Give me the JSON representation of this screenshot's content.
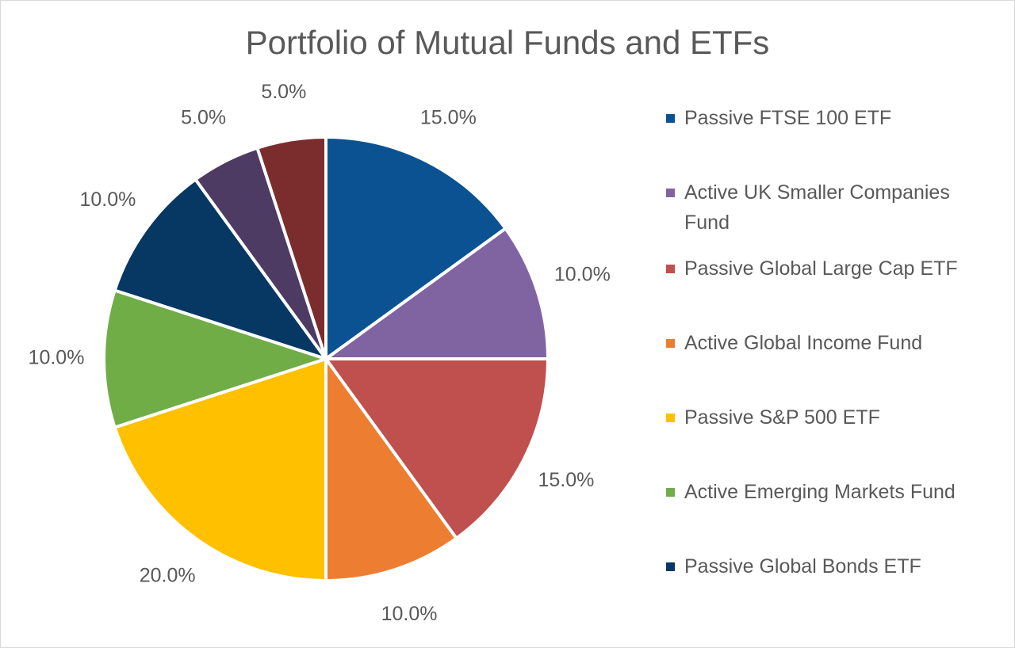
{
  "chart_data": {
    "type": "pie",
    "title": "Portfolio of Mutual Funds and ETFs",
    "slices": [
      {
        "name": "Passive FTSE 100 ETF",
        "value": 15.0,
        "label": "15.0%",
        "color": "#0A5292"
      },
      {
        "name": "Active UK Smaller Companies Fund",
        "value": 10.0,
        "label": "10.0%",
        "color": "#8064A2"
      },
      {
        "name": "Passive Global Large Cap ETF",
        "value": 15.0,
        "label": "15.0%",
        "color": "#C0504D"
      },
      {
        "name": "Active Global Income Fund",
        "value": 10.0,
        "label": "10.0%",
        "color": "#ED7D31"
      },
      {
        "name": "Passive S&P 500 ETF",
        "value": 20.0,
        "label": "20.0%",
        "color": "#FFC000"
      },
      {
        "name": "Active Emerging Markets Fund",
        "value": 10.0,
        "label": "10.0%",
        "color": "#70AD47"
      },
      {
        "name": "Passive Global Bonds ETF",
        "value": 10.0,
        "label": "10.0%",
        "color": "#073763"
      },
      {
        "name": "",
        "value": 5.0,
        "label": "5.0%",
        "color": "#4E3B63"
      },
      {
        "name": "",
        "value": 5.0,
        "label": "5.0%",
        "color": "#7B2C2C"
      }
    ],
    "legend": [
      "Passive FTSE 100 ETF",
      "Active UK Smaller Companies Fund",
      "Passive Global Large Cap ETF",
      "Active Global Income Fund",
      "Passive S&P 500 ETF",
      "Active Emerging Markets Fund",
      "Passive Global Bonds ETF"
    ],
    "legend_position": "right"
  }
}
